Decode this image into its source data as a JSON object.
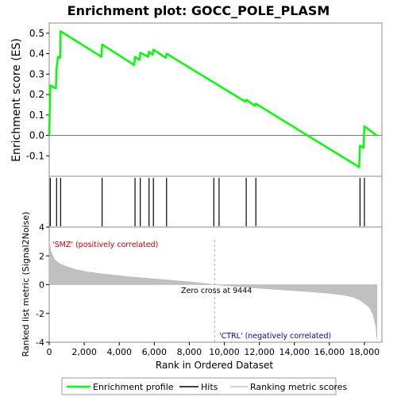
{
  "chart_data": {
    "type": "line",
    "title": "Enrichment plot: GOCC_POLE_PLASM",
    "xlabel": "Rank in Ordered Dataset",
    "es_panel": {
      "ylabel": "Enrichment score (ES)",
      "ylim": [
        -0.2,
        0.55
      ],
      "yticks": [
        -0.1,
        0.0,
        0.1,
        0.2,
        0.3,
        0.4,
        0.5
      ],
      "ytick_labels": [
        "-0.1",
        "0.0",
        "0.1",
        "0.2",
        "0.3",
        "0.4",
        "0.5"
      ],
      "series": [
        {
          "name": "Enrichment profile",
          "color": "#00ff00",
          "x": [
            0,
            60,
            380,
            420,
            500,
            620,
            650,
            2980,
            3020,
            4850,
            4900,
            5150,
            5200,
            5650,
            5700,
            5900,
            5950,
            6650,
            6700,
            11200,
            11250,
            11750,
            11800,
            17700,
            17750,
            17950,
            18000,
            18700
          ],
          "y": [
            0.0,
            0.245,
            0.23,
            0.33,
            0.385,
            0.38,
            0.51,
            0.385,
            0.445,
            0.345,
            0.385,
            0.37,
            0.405,
            0.385,
            0.41,
            0.395,
            0.42,
            0.38,
            0.4,
            0.165,
            0.175,
            0.145,
            0.155,
            -0.155,
            -0.05,
            -0.06,
            0.045,
            0.0
          ]
        }
      ]
    },
    "hits": {
      "name": "Hits",
      "positions": [
        60,
        420,
        650,
        3020,
        4900,
        5200,
        5700,
        5950,
        6700,
        9400,
        9700,
        11250,
        11800,
        17750,
        18000
      ]
    },
    "rank_metric_panel": {
      "ylabel": "Ranked list metric (Signal2Noise)",
      "ylim": [
        -4,
        4
      ],
      "yticks": [
        -4,
        -2,
        0,
        2,
        4
      ],
      "ytick_labels": [
        "-4",
        "-2",
        "0",
        "2",
        "4"
      ],
      "profile_x": [
        0,
        100,
        300,
        600,
        1000,
        1500,
        2000,
        3000,
        4000,
        5000,
        6000,
        7000,
        8000,
        9444,
        10000,
        11000,
        12000,
        13000,
        14000,
        15000,
        16000,
        16800,
        17300,
        17700,
        18000,
        18300,
        18500,
        18650,
        18720
      ],
      "profile_y": [
        3.0,
        2.3,
        1.75,
        1.45,
        1.25,
        1.05,
        0.92,
        0.75,
        0.62,
        0.5,
        0.4,
        0.3,
        0.2,
        0.0,
        -0.06,
        -0.15,
        -0.25,
        -0.33,
        -0.42,
        -0.5,
        -0.6,
        -0.72,
        -0.85,
        -1.05,
        -1.3,
        -1.6,
        -2.1,
        -2.9,
        -3.8
      ]
    },
    "xlim": [
      0,
      19000
    ],
    "xticks": [
      0,
      2000,
      4000,
      6000,
      8000,
      10000,
      12000,
      14000,
      16000,
      18000
    ],
    "xtick_labels": [
      "0",
      "2,000",
      "4,000",
      "6,000",
      "8,000",
      "10,000",
      "12,000",
      "14,000",
      "16,000",
      "18,000"
    ],
    "zero_cross": 9444,
    "zero_cross_label": "Zero cross at 9444",
    "pos_label": "'SMZ' (positively correlated)",
    "neg_label": "'CTRL' (negatively correlated)",
    "colorbar_segments": [
      {
        "from": 0,
        "to": 700,
        "color": "#e8001a"
      },
      {
        "from": 700,
        "to": 3500,
        "color": "#f2344a"
      },
      {
        "from": 3500,
        "to": 5000,
        "color": "#f55a6d"
      },
      {
        "from": 5000,
        "to": 7000,
        "color": "#f8808e"
      },
      {
        "from": 7000,
        "to": 9400,
        "color": "#fbc0e8"
      },
      {
        "from": 9400,
        "to": 11800,
        "color": "#dcd8f5"
      },
      {
        "from": 11800,
        "to": 13600,
        "color": "#c8c4f4"
      },
      {
        "from": 13600,
        "to": 15200,
        "color": "#8a80ec"
      },
      {
        "from": 15200,
        "to": 18000,
        "color": "#5848e2"
      },
      {
        "from": 18000,
        "to": 18720,
        "color": "#2410d4"
      }
    ],
    "legend": {
      "items": [
        {
          "label": "Enrichment profile",
          "color": "#00ff00"
        },
        {
          "label": "Hits",
          "color": "#000000"
        },
        {
          "label": "Ranking metric scores",
          "color": "#d0d0d0"
        }
      ]
    }
  }
}
